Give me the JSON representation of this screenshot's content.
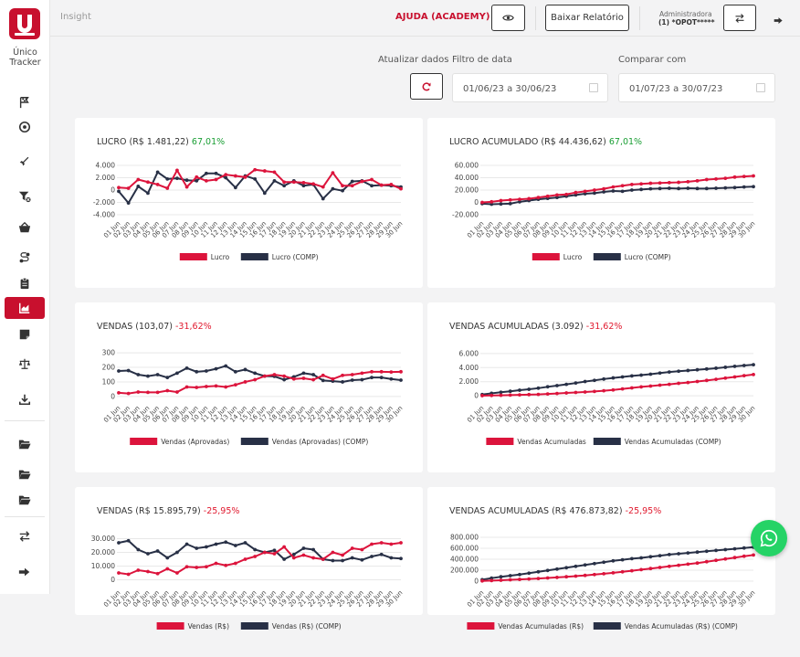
{
  "brand": {
    "logo_letter": "U",
    "name_line1": "Único",
    "name_line2": "Tracker"
  },
  "topbar": {
    "breadcrumb": "Insight",
    "help_label": "AJUDA (ACADEMY)",
    "download_label": "Baixar Relatório",
    "user_role": "Administradora",
    "user_name": "(1) *OPOT*****"
  },
  "filters": {
    "refresh_label": "Atualizar dados",
    "date_label": "Filtro de data",
    "date_value": "01/06/23 a 30/06/23",
    "compare_label": "Comparar com",
    "compare_value": "01/07/23 a 30/07/23"
  },
  "colors": {
    "primary": "#dc143c",
    "compare": "#283046",
    "accent": "#c8102e",
    "positive": "#1a9e34",
    "negative": "#e0192e"
  },
  "sidebar_icons": [
    "flag-icon",
    "target-icon",
    "rocket-icon",
    "filter-icon",
    "basket-icon",
    "route-icon",
    "clipboard-icon",
    "chart-area-icon",
    "note-icon",
    "scale-icon",
    "download-icon",
    "folder-icon",
    "folder-icon",
    "folder-icon",
    "exchange-icon",
    "logout-icon"
  ],
  "cards": [
    {
      "title": "LUCRO (R$ 1.481,22)",
      "delta": "67,01%",
      "delta_sign": "pos"
    },
    {
      "title": "LUCRO ACUMULADO (R$ 44.436,62)",
      "delta": "67,01%",
      "delta_sign": "pos"
    },
    {
      "title": "VENDAS (103,07)",
      "delta": "-31,62%",
      "delta_sign": "neg"
    },
    {
      "title": "VENDAS ACUMULADAS (3.092)",
      "delta": "-31,62%",
      "delta_sign": "neg"
    },
    {
      "title": "VENDAS (R$ 15.895,79)",
      "delta": "-25,95%",
      "delta_sign": "neg"
    },
    {
      "title": "VENDAS ACUMULADAS (R$ 476.873,82)",
      "delta": "-25,95%",
      "delta_sign": "neg"
    }
  ],
  "chart_data": [
    {
      "type": "line",
      "x": [
        "01 Jun",
        "02 Jun",
        "03 Jun",
        "04 Jun",
        "05 Jun",
        "06 Jun",
        "07 Jun",
        "08 Jun",
        "09 Jun",
        "10 Jun",
        "11 Jun",
        "12 Jun",
        "13 Jun",
        "14 Jun",
        "15 Jun",
        "16 Jun",
        "17 Jun",
        "18 Jun",
        "19 Jun",
        "20 Jun",
        "21 Jun",
        "22 Jun",
        "23 Jun",
        "24 Jun",
        "25 Jun",
        "26 Jun",
        "27 Jun",
        "28 Jun",
        "29 Jun",
        "30 Jun"
      ],
      "yticks": [
        4000,
        2000,
        0,
        -2000,
        -4000
      ],
      "ytick_labels": [
        "4.000",
        "2.000",
        "0",
        "-2.000",
        "-4.000"
      ],
      "ylim": [
        -4000,
        4000
      ],
      "series": [
        {
          "name": "Lucro",
          "values": [
            400,
            300,
            1700,
            1300,
            900,
            300,
            3200,
            500,
            2100,
            1500,
            1700,
            2500,
            2300,
            2100,
            3300,
            3100,
            2900,
            1300,
            1300,
            1200,
            1000,
            500,
            2800,
            700,
            700,
            1400,
            1700,
            800,
            900,
            200
          ]
        },
        {
          "name": "Lucro (COMP)",
          "values": [
            -200,
            -2100,
            600,
            -500,
            2900,
            1800,
            1900,
            1600,
            1500,
            2700,
            2700,
            2000,
            400,
            2300,
            1800,
            -500,
            1500,
            700,
            1500,
            700,
            900,
            -1400,
            200,
            -100,
            1400,
            1500,
            700,
            800,
            700,
            500
          ]
        }
      ]
    },
    {
      "type": "line",
      "x": [
        "01 Jun",
        "02 Jun",
        "03 Jun",
        "04 Jun",
        "05 Jun",
        "06 Jun",
        "07 Jun",
        "08 Jun",
        "09 Jun",
        "10 Jun",
        "11 Jun",
        "12 Jun",
        "13 Jun",
        "14 Jun",
        "15 Jun",
        "16 Jun",
        "17 Jun",
        "18 Jun",
        "19 Jun",
        "20 Jun",
        "21 Jun",
        "22 Jun",
        "23 Jun",
        "24 Jun",
        "25 Jun",
        "26 Jun",
        "27 Jun",
        "28 Jun",
        "29 Jun",
        "30 Jun"
      ],
      "yticks": [
        60000,
        40000,
        20000,
        0,
        -20000
      ],
      "ytick_labels": [
        "60.000",
        "40.000",
        "20.000",
        "0",
        "-20.000"
      ],
      "ylim": [
        -20000,
        60000
      ],
      "series": [
        {
          "name": "Lucro",
          "values": [
            0,
            1000,
            3000,
            4000,
            5000,
            6000,
            8000,
            10000,
            12000,
            13000,
            16000,
            18000,
            20000,
            22000,
            25000,
            27000,
            29000,
            30000,
            31000,
            31500,
            32000,
            32500,
            33500,
            35000,
            37000,
            38000,
            39000,
            41000,
            42000,
            43000
          ]
        },
        {
          "name": "Lucro (COMP)",
          "values": [
            -2000,
            -3000,
            -2500,
            -2000,
            1000,
            3000,
            5000,
            6500,
            8000,
            10000,
            12000,
            14000,
            15000,
            17000,
            18500,
            18000,
            20000,
            21000,
            22000,
            22500,
            23000,
            22500,
            23000,
            22500,
            22500,
            23000,
            23500,
            24000,
            25000,
            25500
          ]
        }
      ]
    },
    {
      "type": "line",
      "x": [
        "01 Jun",
        "02 Jun",
        "03 Jun",
        "04 Jun",
        "05 Jun",
        "06 Jun",
        "07 Jun",
        "08 Jun",
        "09 Jun",
        "10 Jun",
        "11 Jun",
        "12 Jun",
        "13 Jun",
        "14 Jun",
        "15 Jun",
        "16 Jun",
        "17 Jun",
        "18 Jun",
        "19 Jun",
        "20 Jun",
        "21 Jun",
        "22 Jun",
        "23 Jun",
        "24 Jun",
        "25 Jun",
        "26 Jun",
        "27 Jun",
        "28 Jun",
        "29 Jun",
        "30 Jun"
      ],
      "yticks": [
        300,
        200,
        100,
        0
      ],
      "ytick_labels": [
        "300",
        "200",
        "100",
        "0"
      ],
      "ylim": [
        -20,
        320
      ],
      "series": [
        {
          "name": "Vendas (Aprovadas)",
          "values": [
            25,
            20,
            30,
            28,
            28,
            40,
            30,
            65,
            62,
            68,
            72,
            65,
            80,
            100,
            115,
            140,
            150,
            140,
            120,
            125,
            115,
            145,
            120,
            145,
            150,
            160,
            170,
            170,
            168,
            170
          ]
        },
        {
          "name": "Vendas (Aprovadas) (COMP)",
          "values": [
            175,
            178,
            150,
            140,
            150,
            130,
            160,
            195,
            170,
            175,
            190,
            210,
            170,
            185,
            160,
            140,
            138,
            115,
            135,
            160,
            150,
            110,
            105,
            100,
            112,
            115,
            130,
            130,
            120,
            112
          ]
        }
      ]
    },
    {
      "type": "line",
      "x": [
        "01 Jun",
        "02 Jun",
        "03 Jun",
        "04 Jun",
        "05 Jun",
        "06 Jun",
        "07 Jun",
        "08 Jun",
        "09 Jun",
        "10 Jun",
        "11 Jun",
        "12 Jun",
        "13 Jun",
        "14 Jun",
        "15 Jun",
        "16 Jun",
        "17 Jun",
        "18 Jun",
        "19 Jun",
        "20 Jun",
        "21 Jun",
        "22 Jun",
        "23 Jun",
        "24 Jun",
        "25 Jun",
        "26 Jun",
        "27 Jun",
        "28 Jun",
        "29 Jun",
        "30 Jun"
      ],
      "yticks": [
        6000,
        4000,
        2000,
        0
      ],
      "ytick_labels": [
        "6.000",
        "4.000",
        "2.000",
        "0"
      ],
      "ylim": [
        -500,
        6500
      ],
      "series": [
        {
          "name": "Vendas Acumuladas",
          "values": [
            25,
            45,
            75,
            100,
            130,
            170,
            200,
            265,
            330,
            400,
            470,
            535,
            615,
            715,
            830,
            970,
            1120,
            1260,
            1380,
            1505,
            1620,
            1765,
            1885,
            2030,
            2180,
            2340,
            2510,
            2680,
            2850,
            3020
          ]
        },
        {
          "name": "Vendas Acumuladas (COMP)",
          "values": [
            175,
            350,
            500,
            640,
            790,
            920,
            1080,
            1275,
            1445,
            1620,
            1810,
            2020,
            2190,
            2375,
            2535,
            2675,
            2815,
            2930,
            3065,
            3225,
            3375,
            3485,
            3590,
            3690,
            3800,
            3915,
            4045,
            4175,
            4295,
            4410
          ]
        }
      ]
    },
    {
      "type": "line",
      "x": [
        "01 Jun",
        "02 Jun",
        "03 Jun",
        "04 Jun",
        "05 Jun",
        "06 Jun",
        "07 Jun",
        "08 Jun",
        "09 Jun",
        "10 Jun",
        "11 Jun",
        "12 Jun",
        "13 Jun",
        "14 Jun",
        "15 Jun",
        "16 Jun",
        "17 Jun",
        "18 Jun",
        "19 Jun",
        "20 Jun",
        "21 Jun",
        "22 Jun",
        "23 Jun",
        "24 Jun",
        "25 Jun",
        "26 Jun",
        "27 Jun",
        "28 Jun",
        "29 Jun",
        "30 Jun"
      ],
      "yticks": [
        30000,
        20000,
        10000,
        0
      ],
      "ytick_labels": [
        "30.000",
        "20.000",
        "10.000",
        "0"
      ],
      "ylim": [
        -3000,
        33000
      ],
      "series": [
        {
          "name": "Vendas (R$)",
          "values": [
            5000,
            4000,
            7000,
            6000,
            4500,
            8000,
            5000,
            9500,
            9000,
            9500,
            12000,
            10500,
            12000,
            15000,
            17000,
            20000,
            19000,
            24000,
            16000,
            18000,
            16000,
            15000,
            20000,
            18000,
            23000,
            22000,
            26000,
            27000,
            26000,
            27000
          ]
        },
        {
          "name": "Vendas (R$) (COMP)",
          "values": [
            27000,
            28500,
            22000,
            19000,
            21000,
            16000,
            20000,
            26000,
            23000,
            24000,
            26000,
            27500,
            25000,
            27000,
            22000,
            20000,
            21500,
            15000,
            18500,
            23000,
            22000,
            15000,
            14000,
            14000,
            16000,
            14500,
            17000,
            18500,
            16000,
            15500
          ]
        }
      ]
    },
    {
      "type": "line",
      "x": [
        "01 Jun",
        "02 Jun",
        "03 Jun",
        "04 Jun",
        "05 Jun",
        "06 Jun",
        "07 Jun",
        "08 Jun",
        "09 Jun",
        "10 Jun",
        "11 Jun",
        "12 Jun",
        "13 Jun",
        "14 Jun",
        "15 Jun",
        "16 Jun",
        "17 Jun",
        "18 Jun",
        "19 Jun",
        "20 Jun",
        "21 Jun",
        "22 Jun",
        "23 Jun",
        "24 Jun",
        "25 Jun",
        "26 Jun",
        "27 Jun",
        "28 Jun",
        "29 Jun",
        "30 Jun"
      ],
      "yticks": [
        800000,
        600000,
        400000,
        200000,
        0
      ],
      "ytick_labels": [
        "800.000",
        "600.000",
        "400.000",
        "200.000",
        "0"
      ],
      "ylim": [
        -50000,
        850000
      ],
      "series": [
        {
          "name": "Vendas Acumuladas (R$)",
          "values": [
            5000,
            10000,
            17000,
            25000,
            32000,
            40000,
            48000,
            58000,
            68000,
            80000,
            92000,
            105000,
            120000,
            135000,
            152000,
            170000,
            190000,
            210000,
            230000,
            250000,
            270000,
            290000,
            310000,
            330000,
            355000,
            380000,
            405000,
            430000,
            455000,
            477000
          ]
        },
        {
          "name": "Vendas Acumuladas (R$) (COMP)",
          "values": [
            27000,
            55000,
            80000,
            100000,
            120000,
            145000,
            170000,
            195000,
            220000,
            245000,
            270000,
            295000,
            320000,
            345000,
            370000,
            390000,
            410000,
            425000,
            445000,
            465000,
            485000,
            500000,
            515000,
            530000,
            545000,
            560000,
            575000,
            590000,
            605000,
            620000
          ]
        }
      ]
    }
  ]
}
